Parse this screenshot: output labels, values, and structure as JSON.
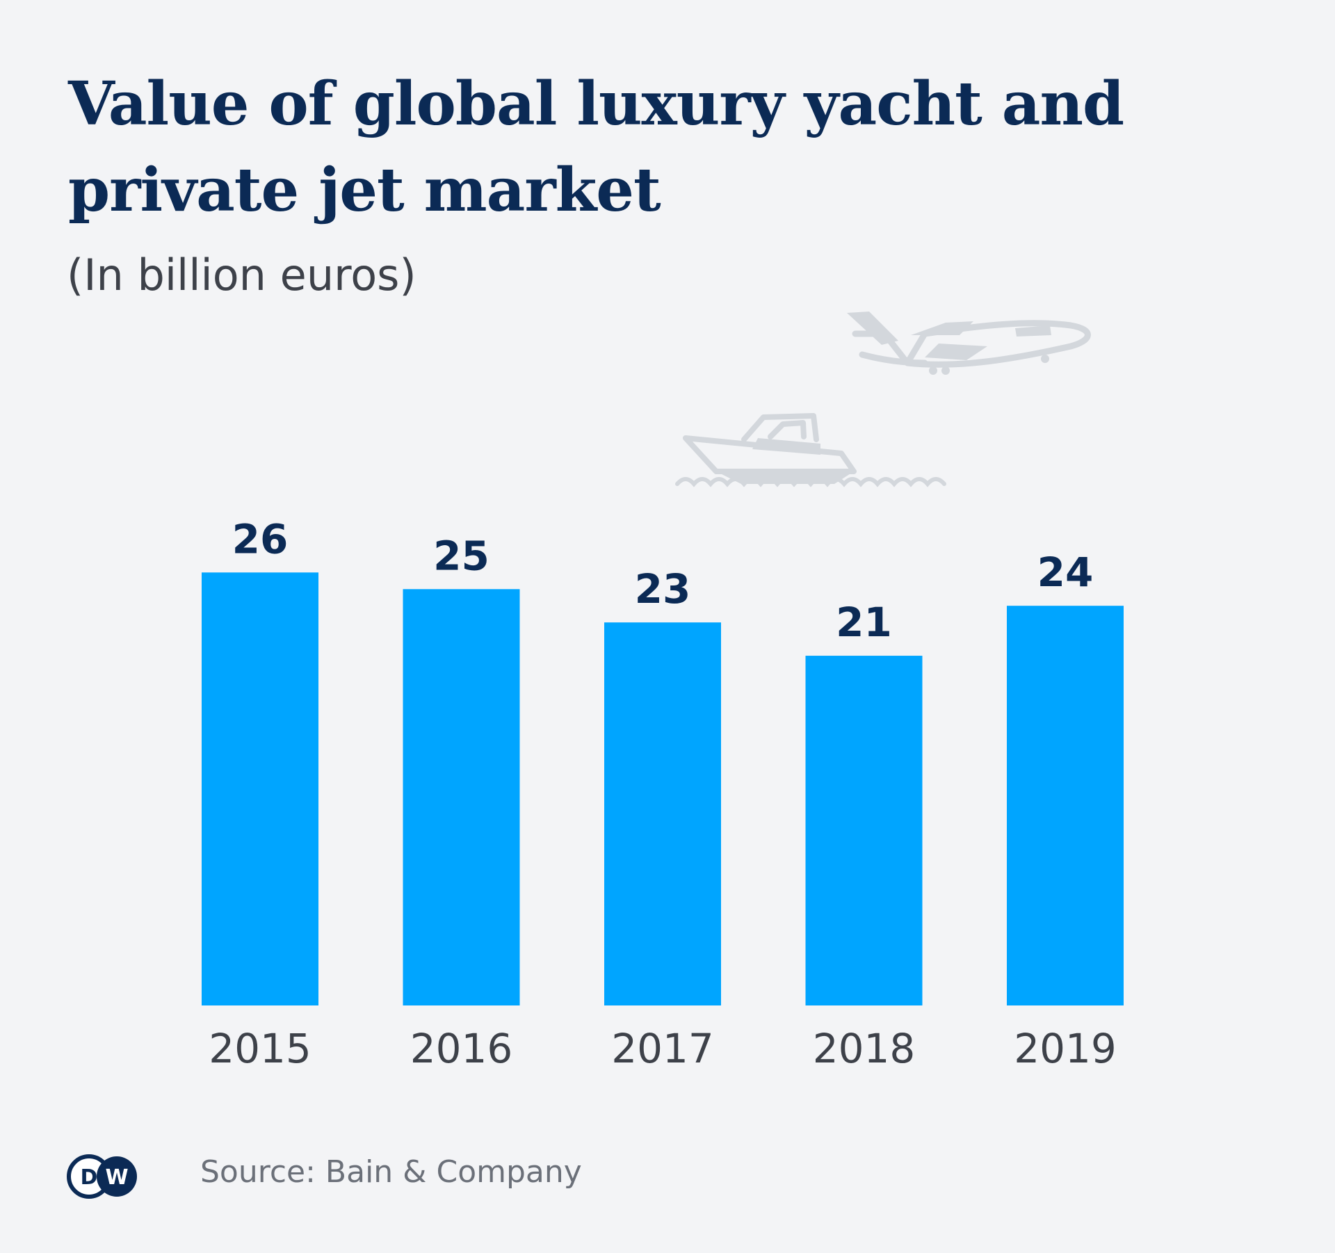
{
  "header": {
    "title": "Value of global luxury yacht and private jet market",
    "subtitle": "(In billion euros)"
  },
  "footer": {
    "source": "Source: Bain & Company",
    "logo_text": "DW"
  },
  "colors": {
    "bar": "#00a5ff",
    "value_label": "#0b2a55",
    "tick_label": "#3d4149",
    "illustration": "#d3d7dc",
    "logo": "#0b2a55"
  },
  "icons": [
    "airplane-icon",
    "yacht-icon",
    "dw-logo-icon"
  ],
  "chart_data": {
    "type": "bar",
    "categories": [
      "2015",
      "2016",
      "2017",
      "2018",
      "2019"
    ],
    "values": [
      26,
      25,
      23,
      21,
      24
    ],
    "title": "Value of global luxury yacht and private jet market",
    "subtitle": "(In billion euros)",
    "xlabel": "",
    "ylabel": "",
    "ylim": [
      0,
      26
    ],
    "grid": false,
    "legend": "none",
    "data_labels": true
  }
}
